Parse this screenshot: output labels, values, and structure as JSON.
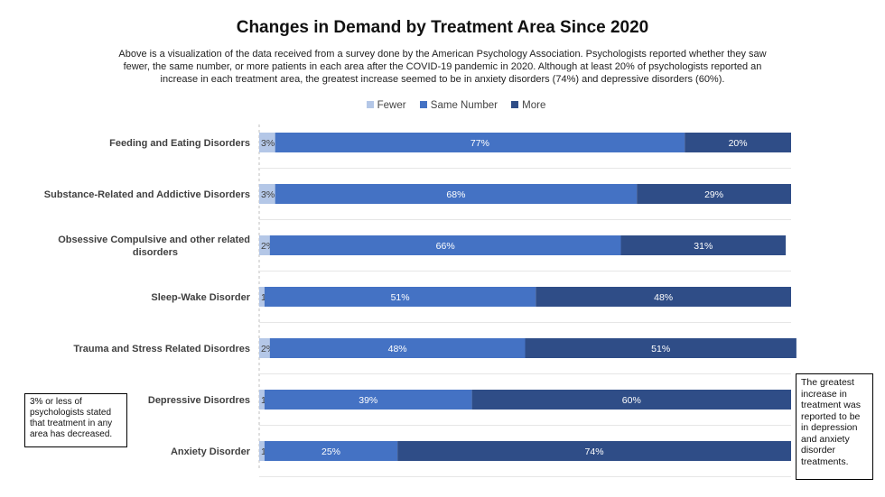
{
  "chart_data": {
    "type": "bar",
    "orientation": "horizontal",
    "stacked": "100%",
    "title": "Changes in Demand by Treatment Area Since 2020",
    "subtitle": "Above is a visualization of the data received from a survey done by the American Psychology Association. Psychologists reported whether they saw fewer, the same number, or more patients in each area after the COVID-19 pandemic in 2020.  Although at least 20% of psychologists reported an increase in each treatment area, the greatest increase seemed to be in anxiety disorders (74%) and depressive disorders (60%).",
    "categories": [
      "Feeding and Eating Disorders",
      "Substance-Related and Addictive Disorders",
      "Obsessive Compulsive and other related disorders",
      "Sleep-Wake Disorder",
      "Trauma and Stress Related Disordres",
      "Depressive Disordres",
      "Anxiety Disorder"
    ],
    "series": [
      {
        "name": "Fewer",
        "color": "#b4c7e7",
        "values": [
          3,
          3,
          2,
          1,
          2,
          1,
          1
        ]
      },
      {
        "name": "Same Number",
        "color": "#4472c4",
        "values": [
          77,
          68,
          66,
          51,
          48,
          39,
          25
        ]
      },
      {
        "name": "More",
        "color": "#2f4d87",
        "values": [
          20,
          29,
          31,
          48,
          51,
          60,
          74
        ]
      }
    ],
    "data_label_suffix": "%",
    "xlim": [
      0,
      100
    ],
    "legend_position": "top",
    "grid": true,
    "annotations": [
      "3% or less of psychologists  stated that treatment in any area has decreased.",
      "The greatest increase in treatment was reported to be in depression and anxiety disorder treatments."
    ]
  }
}
